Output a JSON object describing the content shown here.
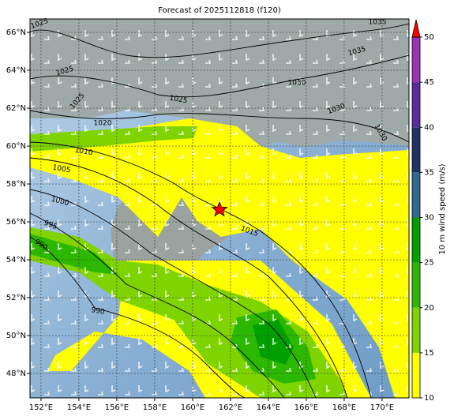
{
  "title": "Forecast of 2025112818 (f120)",
  "map": {
    "lonlim": [
      151.42,
      171.42
    ],
    "latlim": [
      46.71,
      66.71
    ],
    "lon_ticks": [
      {
        "value": 152,
        "label": "152°E"
      },
      {
        "value": 154,
        "label": "154°E"
      },
      {
        "value": 156,
        "label": "156°E"
      },
      {
        "value": 158,
        "label": "158°E"
      },
      {
        "value": 160,
        "label": "160°E"
      },
      {
        "value": 162,
        "label": "162°E"
      },
      {
        "value": 164,
        "label": "164°E"
      },
      {
        "value": 166,
        "label": "166°E"
      },
      {
        "value": 168,
        "label": "168°E"
      },
      {
        "value": 170,
        "label": "170°E"
      }
    ],
    "lat_ticks": [
      {
        "value": 48,
        "label": "48°N"
      },
      {
        "value": 50,
        "label": "50°N"
      },
      {
        "value": 52,
        "label": "52°N"
      },
      {
        "value": 54,
        "label": "54°N"
      },
      {
        "value": 56,
        "label": "56°N"
      },
      {
        "value": 58,
        "label": "58°N"
      },
      {
        "value": 60,
        "label": "60°N"
      },
      {
        "value": 62,
        "label": "62°N"
      },
      {
        "value": 64,
        "label": "64°N"
      },
      {
        "value": 66,
        "label": "66°N"
      }
    ],
    "grid": true
  },
  "contours": {
    "labels": [
      "1025",
      "1035",
      "1025",
      "1035",
      "1030",
      "1025",
      "1025",
      "1030",
      "1030",
      "1020",
      "1010",
      "1005",
      "1000",
      "995",
      "990",
      "990",
      "1015"
    ]
  },
  "colorbar": {
    "label": "10 m wind speed (m/s)",
    "lim": [
      10,
      50
    ],
    "ticks": [
      10,
      15,
      20,
      25,
      30,
      35,
      40,
      45,
      50
    ],
    "colors": [
      "#ffff00",
      "#7fd400",
      "#2db800",
      "#00a000",
      "#2e6a8c",
      "#1e3462",
      "#5a2c9c",
      "#9b34b4"
    ],
    "extend_color": "#ff0000"
  }
}
